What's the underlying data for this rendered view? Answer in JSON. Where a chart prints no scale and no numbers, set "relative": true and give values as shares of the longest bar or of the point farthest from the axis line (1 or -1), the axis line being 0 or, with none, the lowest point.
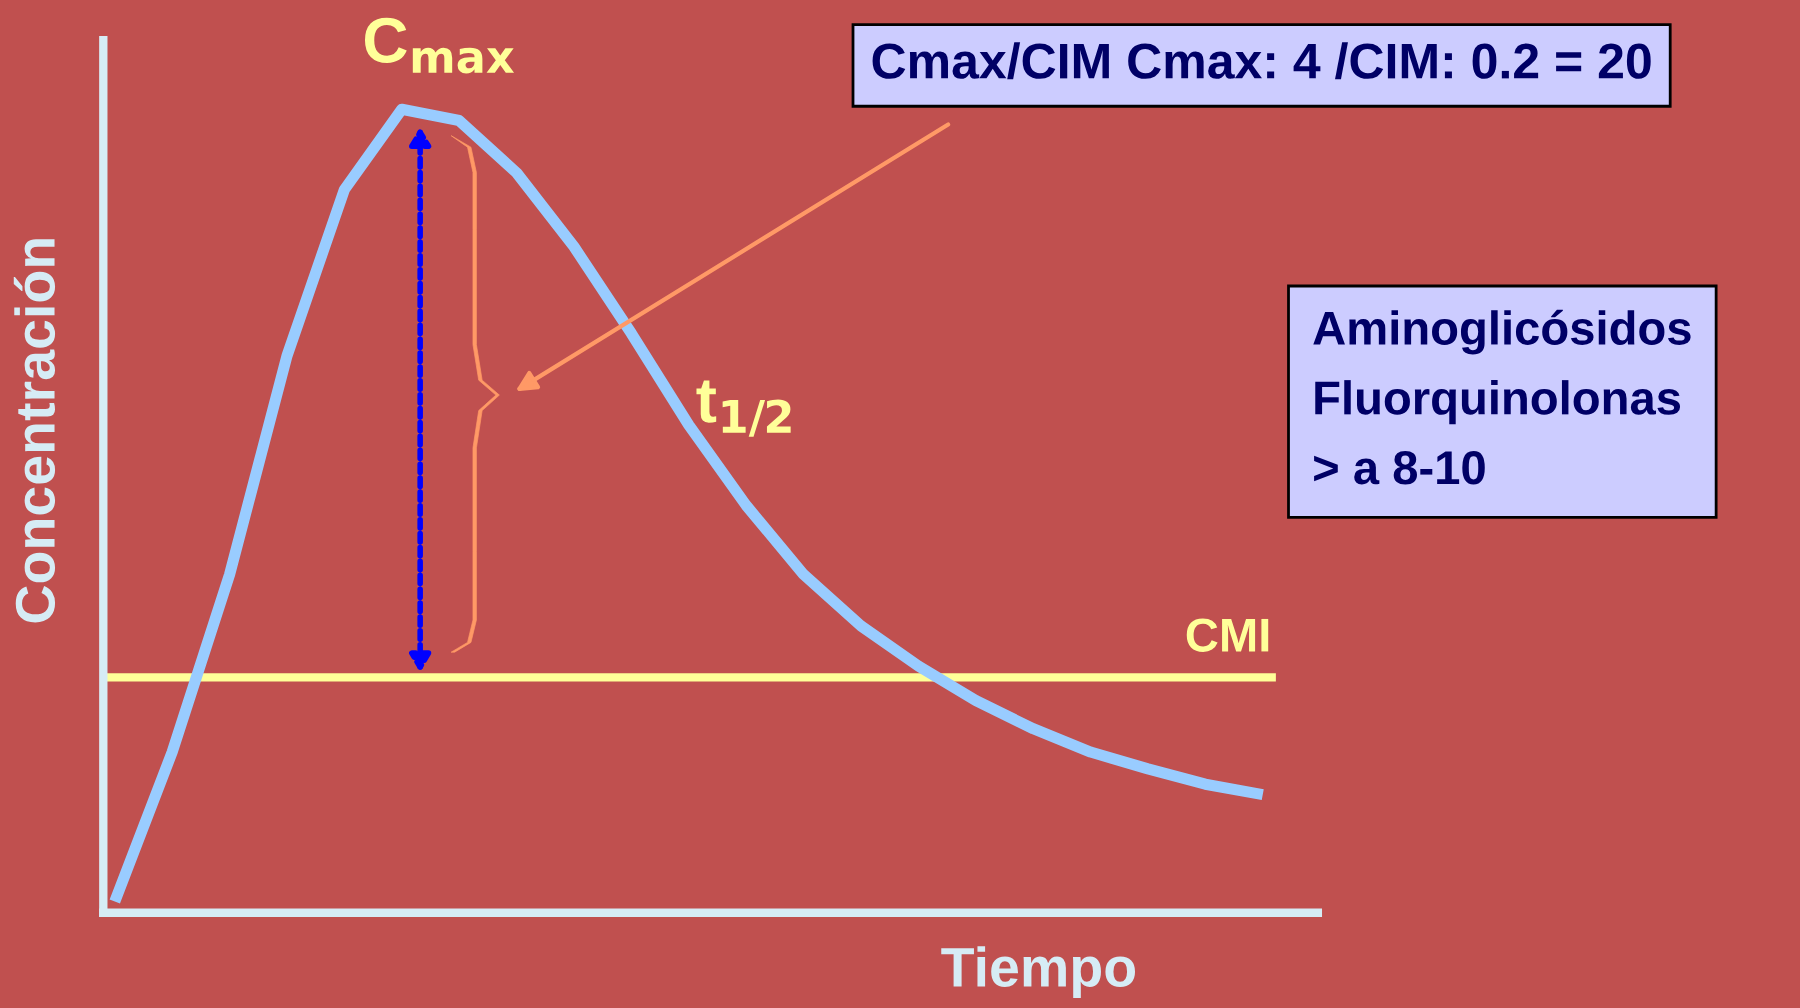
{
  "chart_data": {
    "type": "line",
    "relative": true,
    "xlabel": "Tiempo",
    "ylabel": "Concentración",
    "categories": [
      null,
      null,
      null,
      null,
      null,
      null,
      null,
      null,
      null,
      null,
      null,
      null,
      null,
      null,
      null,
      null,
      null,
      null,
      null,
      null,
      null
    ],
    "series": [
      {
        "color": "#99ccff",
        "values": [
          0.014,
          0.2,
          0.421,
          0.693,
          0.9,
          1,
          0.986,
          0.921,
          0.829,
          0.721,
          0.607,
          0.507,
          0.421,
          0.357,
          0.307,
          0.264,
          0.229,
          0.2,
          0.179,
          0.16,
          0.147
        ]
      }
    ],
    "ref_lines": [
      {
        "axis": "y",
        "value": 0.293,
        "label": "CMI",
        "color": "#ffff99"
      }
    ],
    "annotations": [
      "C$_{max}$",
      "t$_{1/2}$",
      "Cmax/CIM Cmax: 4 /CIM: 0.2 = 20",
      "Aminoglicósidos\nFluorquinolonas\n> a 8-10"
    ],
    "grid": false,
    "legend": false,
    "marker": "none",
    "line_style": "solid"
  }
}
